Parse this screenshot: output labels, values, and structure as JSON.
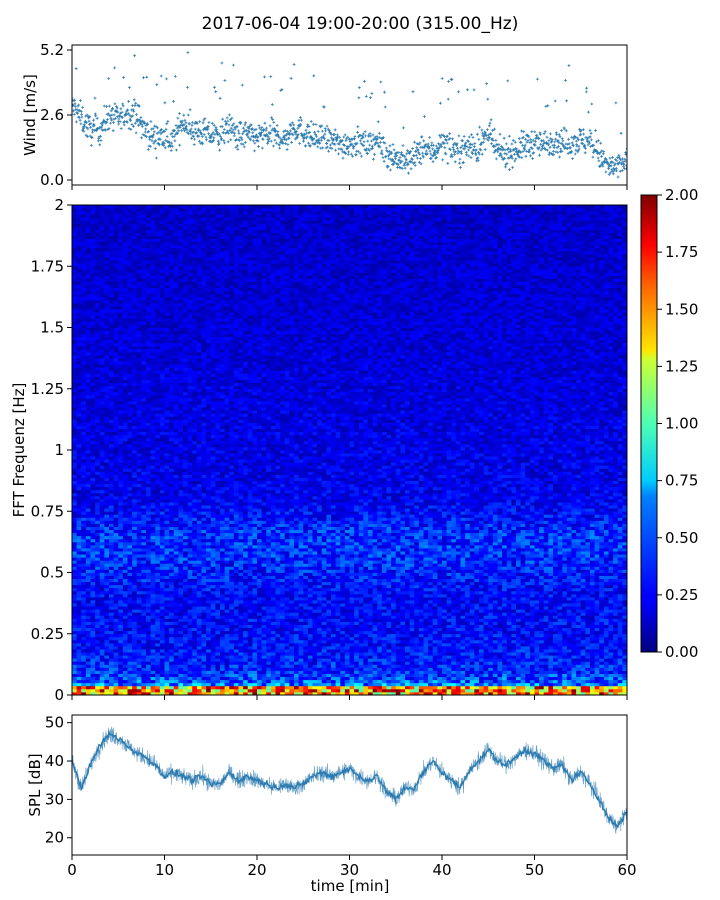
{
  "figure": {
    "title": "2017-06-04 19:00-20:00 (315.00_Hz)"
  },
  "chart_data": [
    {
      "type": "scatter",
      "panel": "wind",
      "ylabel": "Wind [m/s]",
      "xlabel": "",
      "xlim": [
        0,
        60
      ],
      "ylim": [
        -0.2,
        5.4
      ],
      "yticks": [
        0.0,
        2.6,
        5.2
      ],
      "yticklabels": [
        "0.0",
        "2.6",
        "5.2"
      ],
      "marker_color": "#2a7ab0",
      "series": [
        {
          "x": [
            0,
            1,
            2,
            3,
            4,
            5,
            6,
            7,
            8,
            9,
            10,
            11,
            12,
            13,
            14,
            15,
            16,
            17,
            18,
            19,
            20,
            21,
            22,
            23,
            24,
            25,
            26,
            27,
            28,
            29,
            30,
            31,
            32,
            33,
            34,
            35,
            36,
            37,
            38,
            39,
            40,
            41,
            42,
            43,
            44,
            45,
            46,
            47,
            48,
            49,
            50,
            51,
            52,
            53,
            54,
            55,
            56,
            57,
            58,
            59,
            60
          ],
          "y": [
            3.0,
            2.5,
            2.0,
            2.0,
            2.6,
            2.4,
            2.7,
            2.6,
            1.9,
            1.7,
            1.7,
            1.6,
            2.4,
            2.0,
            1.9,
            1.8,
            1.8,
            2.1,
            1.8,
            1.8,
            1.7,
            1.8,
            1.8,
            1.6,
            2.1,
            1.9,
            1.7,
            1.6,
            1.6,
            1.4,
            1.5,
            1.5,
            1.4,
            1.6,
            1.1,
            0.9,
            0.7,
            0.9,
            1.3,
            1.1,
            1.5,
            1.3,
            1.2,
            1.4,
            1.2,
            1.9,
            1.1,
            1.1,
            1.2,
            1.4,
            1.5,
            1.4,
            1.6,
            1.5,
            1.5,
            1.6,
            1.5,
            1.0,
            0.5,
            0.5,
            0.8
          ]
        }
      ]
    },
    {
      "type": "heatmap",
      "panel": "spectrogram",
      "ylabel": "FFT Frequenz [Hz]",
      "xlabel": "",
      "xlim": [
        0,
        60
      ],
      "ylim": [
        0,
        2
      ],
      "yticks": [
        0,
        0.25,
        0.5,
        0.75,
        1,
        1.25,
        1.5,
        1.75,
        2
      ],
      "yticklabels": [
        "0",
        "0.25",
        "0.5",
        "0.75",
        "1",
        "1.25",
        "1.5",
        "1.75",
        "2"
      ],
      "colormap": "jet",
      "colorbar": {
        "range": [
          0,
          2
        ],
        "ticks": [
          0.0,
          0.25,
          0.5,
          0.75,
          1.0,
          1.25,
          1.5,
          1.75,
          2.0
        ],
        "ticklabels": [
          "0.00",
          "0.25",
          "0.50",
          "0.75",
          "1.00",
          "1.25",
          "1.50",
          "1.75",
          "2.00"
        ]
      },
      "profile": {
        "frequency_hz": [
          0.0,
          0.02,
          0.05,
          0.1,
          0.2,
          0.4,
          0.55,
          0.65,
          0.8,
          1.0,
          1.5,
          2.0
        ],
        "mean_value": [
          1.2,
          0.7,
          0.45,
          0.32,
          0.27,
          0.25,
          0.33,
          0.34,
          0.22,
          0.2,
          0.17,
          0.15
        ]
      }
    },
    {
      "type": "line",
      "panel": "spl",
      "ylabel": "SPL [dB]",
      "xlabel": "time [min]",
      "xlim": [
        0,
        60
      ],
      "ylim": [
        15.5,
        52
      ],
      "yticks": [
        20,
        30,
        40,
        50
      ],
      "yticklabels": [
        "20",
        "30",
        "40",
        "50"
      ],
      "xticks": [
        0,
        10,
        20,
        30,
        40,
        50,
        60
      ],
      "xticklabels": [
        "0",
        "10",
        "20",
        "30",
        "40",
        "50",
        "60"
      ],
      "line_color": "#2a7ab0",
      "series": [
        {
          "x": [
            0,
            1,
            2,
            3,
            4,
            5,
            6,
            7,
            8,
            9,
            10,
            11,
            12,
            13,
            14,
            15,
            16,
            17,
            18,
            19,
            20,
            21,
            22,
            23,
            24,
            25,
            26,
            27,
            28,
            29,
            30,
            31,
            32,
            33,
            34,
            35,
            36,
            37,
            38,
            39,
            40,
            41,
            42,
            43,
            44,
            45,
            46,
            47,
            48,
            49,
            50,
            51,
            52,
            53,
            54,
            55,
            56,
            57,
            58,
            59,
            60
          ],
          "y": [
            40,
            33,
            39,
            44,
            47,
            46,
            44,
            42,
            41,
            39,
            36,
            37,
            36,
            35,
            36,
            34,
            34,
            37,
            35,
            36,
            35,
            34,
            33,
            34,
            33,
            34,
            36,
            37,
            36,
            37,
            38,
            36,
            35,
            36,
            32,
            30,
            33,
            33,
            37,
            40,
            37,
            35,
            33,
            38,
            40,
            43,
            40,
            39,
            41,
            43,
            42,
            40,
            38,
            39,
            35,
            37,
            34,
            30,
            25,
            23,
            27
          ]
        }
      ]
    }
  ]
}
